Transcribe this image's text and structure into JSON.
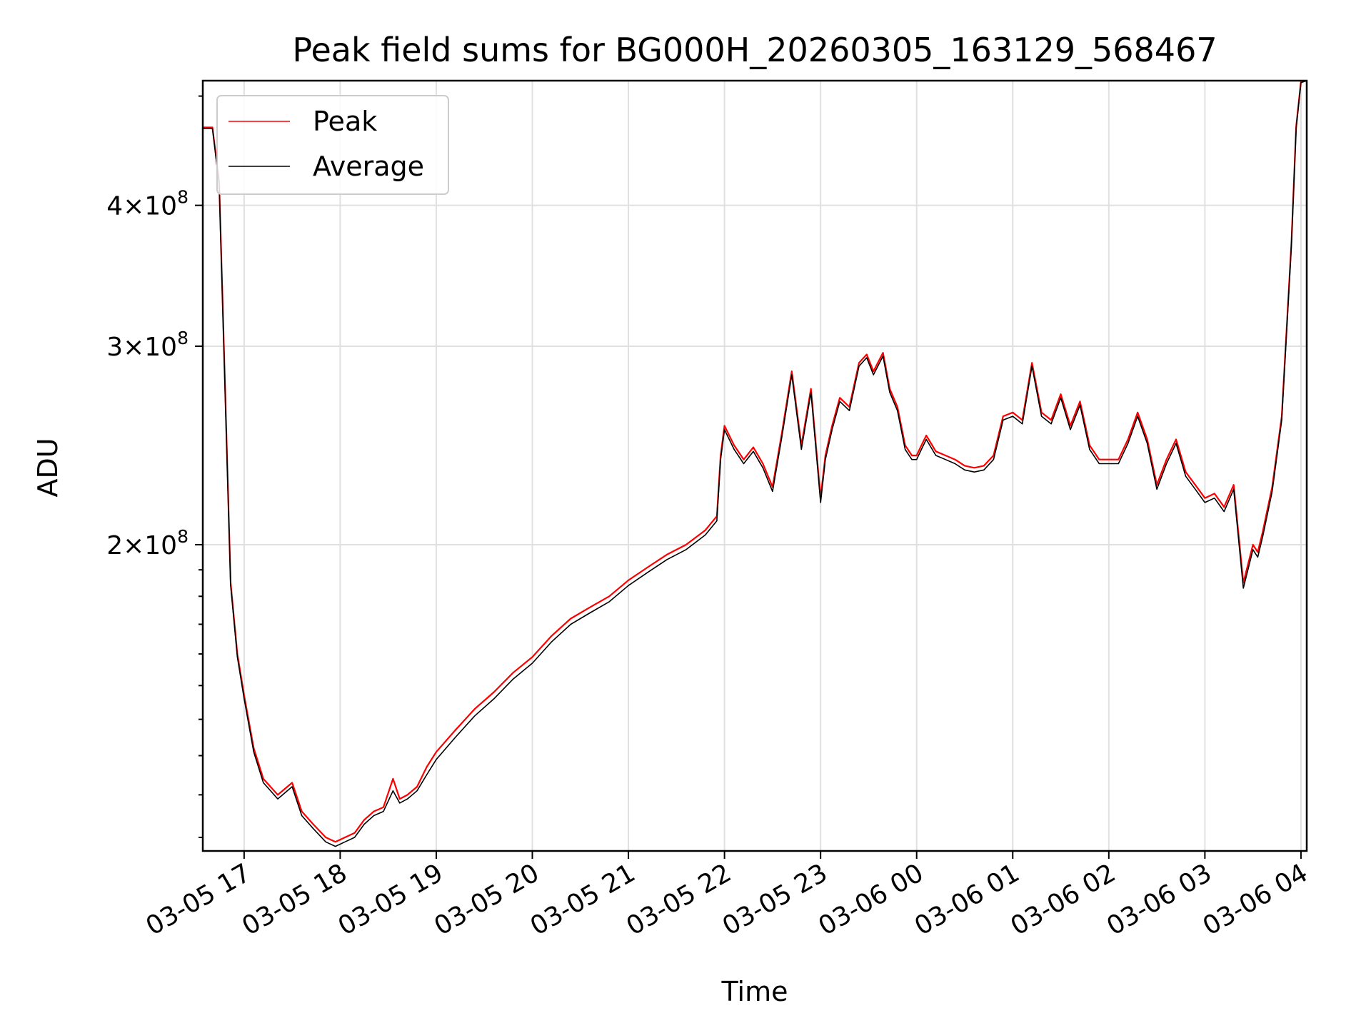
{
  "chart_data": {
    "type": "line",
    "title": "Peak field sums for BG000H_20260305_163129_568467",
    "xlabel": "Time",
    "ylabel": "ADU",
    "grid": true,
    "legend_position": "top-left",
    "x_unit": "hours since 03-05 17:00",
    "xlim": [
      -0.43,
      11.06
    ],
    "ylim": [
      107000000,
      516000000
    ],
    "x_ticks": [
      {
        "value": 0,
        "label": "03-05 17"
      },
      {
        "value": 1,
        "label": "03-05 18"
      },
      {
        "value": 2,
        "label": "03-05 19"
      },
      {
        "value": 3,
        "label": "03-05 20"
      },
      {
        "value": 4,
        "label": "03-05 21"
      },
      {
        "value": 5,
        "label": "03-05 22"
      },
      {
        "value": 6,
        "label": "03-05 23"
      },
      {
        "value": 7,
        "label": "03-06 00"
      },
      {
        "value": 8,
        "label": "03-06 01"
      },
      {
        "value": 9,
        "label": "03-06 02"
      },
      {
        "value": 10,
        "label": "03-06 03"
      },
      {
        "value": 11,
        "label": "03-06 04"
      }
    ],
    "y_ticks": [
      {
        "value": 200000000,
        "mantissa": "2",
        "label": "2×10^8"
      },
      {
        "value": 300000000,
        "mantissa": "3",
        "label": "3×10^8"
      },
      {
        "value": 400000000,
        "mantissa": "4",
        "label": "4×10^8"
      }
    ],
    "y_tick_base": "10",
    "y_tick_exponent": "8",
    "y_tick_times": "×",
    "series": [
      {
        "name": "Peak",
        "color": "#ff0000",
        "x": [
          -0.43,
          -0.33,
          -0.26,
          -0.2,
          -0.14,
          -0.07,
          0.0,
          0.1,
          0.2,
          0.35,
          0.5,
          0.6,
          0.72,
          0.85,
          0.95,
          1.05,
          1.15,
          1.25,
          1.35,
          1.45,
          1.55,
          1.62,
          1.7,
          1.8,
          1.9,
          2.0,
          2.2,
          2.4,
          2.6,
          2.8,
          3.0,
          3.2,
          3.4,
          3.6,
          3.8,
          4.0,
          4.2,
          4.4,
          4.6,
          4.8,
          4.92,
          4.96,
          5.0,
          5.1,
          5.2,
          5.3,
          5.4,
          5.5,
          5.6,
          5.7,
          5.8,
          5.9,
          6.0,
          6.05,
          6.12,
          6.2,
          6.3,
          6.4,
          6.48,
          6.55,
          6.65,
          6.72,
          6.8,
          6.88,
          6.95,
          7.0,
          7.05,
          7.1,
          7.2,
          7.3,
          7.4,
          7.5,
          7.6,
          7.7,
          7.8,
          7.9,
          8.0,
          8.1,
          8.2,
          8.3,
          8.4,
          8.5,
          8.6,
          8.7,
          8.8,
          8.9,
          9.0,
          9.1,
          9.2,
          9.3,
          9.4,
          9.5,
          9.6,
          9.7,
          9.8,
          9.9,
          10.0,
          10.1,
          10.2,
          10.3,
          10.4,
          10.5,
          10.55,
          10.6,
          10.7,
          10.8,
          10.9,
          10.95,
          11.0,
          11.06
        ],
        "values": [
          469000000,
          469000000,
          420000000,
          280000000,
          185000000,
          160000000,
          147000000,
          132000000,
          124000000,
          120000000,
          123000000,
          116000000,
          113000000,
          110000000,
          109000000,
          110000000,
          111000000,
          114000000,
          116000000,
          117000000,
          124000000,
          119000000,
          120000000,
          122000000,
          127000000,
          131000000,
          137000000,
          143000000,
          148000000,
          154000000,
          159000000,
          166000000,
          172000000,
          176000000,
          180000000,
          186000000,
          191000000,
          196000000,
          200000000,
          206000000,
          212000000,
          240000000,
          255000000,
          245000000,
          238000000,
          244000000,
          236000000,
          225000000,
          252000000,
          285000000,
          245000000,
          275000000,
          220000000,
          240000000,
          255000000,
          270000000,
          265000000,
          290000000,
          295000000,
          285000000,
          296000000,
          275000000,
          265000000,
          245000000,
          240000000,
          240000000,
          245000000,
          250000000,
          242000000,
          240000000,
          238000000,
          235000000,
          234000000,
          235000000,
          240000000,
          260000000,
          262000000,
          258000000,
          290000000,
          262000000,
          258000000,
          272000000,
          255000000,
          268000000,
          245000000,
          238000000,
          238000000,
          238000000,
          248000000,
          262000000,
          248000000,
          226000000,
          238000000,
          248000000,
          232000000,
          226000000,
          220000000,
          222000000,
          216000000,
          226000000,
          185000000,
          200000000,
          197000000,
          205000000,
          225000000,
          260000000,
          370000000,
          470000000,
          515000000,
          516000000
        ]
      },
      {
        "name": "Average",
        "color": "#000000",
        "x": [
          -0.43,
          -0.33,
          -0.26,
          -0.2,
          -0.14,
          -0.07,
          0.0,
          0.1,
          0.2,
          0.35,
          0.5,
          0.6,
          0.72,
          0.85,
          0.95,
          1.05,
          1.15,
          1.25,
          1.35,
          1.45,
          1.55,
          1.62,
          1.7,
          1.8,
          1.9,
          2.0,
          2.2,
          2.4,
          2.6,
          2.8,
          3.0,
          3.2,
          3.4,
          3.6,
          3.8,
          4.0,
          4.2,
          4.4,
          4.6,
          4.8,
          4.92,
          4.96,
          5.0,
          5.1,
          5.2,
          5.3,
          5.4,
          5.5,
          5.6,
          5.7,
          5.8,
          5.9,
          6.0,
          6.05,
          6.12,
          6.2,
          6.3,
          6.4,
          6.48,
          6.55,
          6.65,
          6.72,
          6.8,
          6.88,
          6.95,
          7.0,
          7.05,
          7.1,
          7.2,
          7.3,
          7.4,
          7.5,
          7.6,
          7.7,
          7.8,
          7.9,
          8.0,
          8.1,
          8.2,
          8.3,
          8.4,
          8.5,
          8.6,
          8.7,
          8.8,
          8.9,
          9.0,
          9.1,
          9.2,
          9.3,
          9.4,
          9.5,
          9.6,
          9.7,
          9.8,
          9.9,
          10.0,
          10.1,
          10.2,
          10.3,
          10.4,
          10.5,
          10.55,
          10.6,
          10.7,
          10.8,
          10.9,
          10.95,
          11.0,
          11.06
        ],
        "values": [
          468000000,
          468000000,
          418000000,
          278000000,
          184000000,
          159000000,
          146000000,
          131000000,
          123000000,
          119000000,
          122000000,
          115000000,
          112000000,
          109000000,
          108000000,
          109000000,
          110000000,
          113000000,
          115000000,
          116000000,
          121000000,
          118000000,
          119000000,
          121000000,
          125000000,
          129000000,
          135000000,
          141000000,
          146000000,
          152000000,
          157000000,
          164000000,
          170000000,
          174000000,
          178000000,
          184000000,
          189000000,
          194000000,
          198000000,
          204000000,
          210000000,
          238000000,
          253000000,
          243000000,
          236000000,
          242000000,
          234000000,
          223000000,
          250000000,
          283000000,
          243000000,
          273000000,
          218000000,
          238000000,
          253000000,
          268000000,
          263000000,
          288000000,
          293000000,
          283000000,
          294000000,
          273000000,
          263000000,
          243000000,
          238000000,
          238000000,
          243000000,
          248000000,
          240000000,
          238000000,
          236000000,
          233000000,
          232000000,
          233000000,
          238000000,
          258000000,
          260000000,
          256000000,
          288000000,
          260000000,
          256000000,
          270000000,
          253000000,
          266000000,
          243000000,
          236000000,
          236000000,
          236000000,
          246000000,
          260000000,
          246000000,
          224000000,
          236000000,
          246000000,
          230000000,
          224000000,
          218000000,
          220000000,
          214000000,
          224000000,
          183000000,
          198000000,
          195000000,
          203000000,
          223000000,
          258000000,
          368000000,
          468000000,
          514000000,
          516000000
        ]
      }
    ]
  }
}
